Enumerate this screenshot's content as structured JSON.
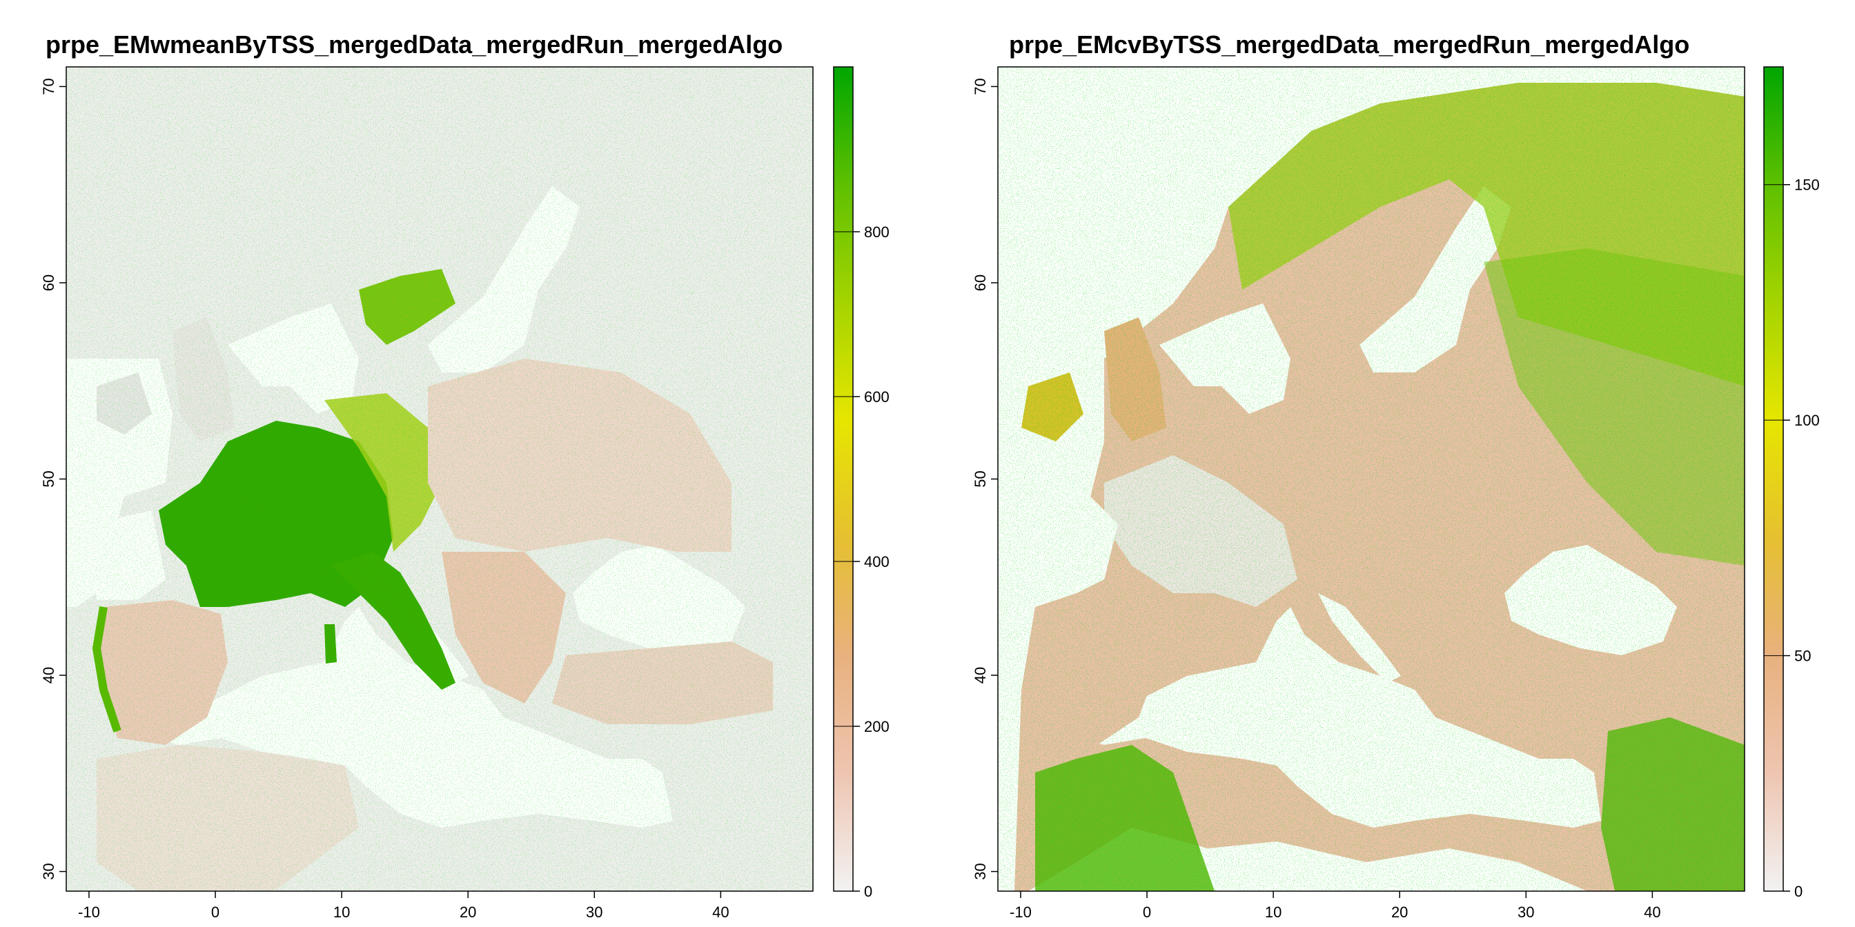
{
  "panels": [
    {
      "title": "prpe_EMwmeanByTSS_mergedData_mergedRun_mergedAlgo",
      "x_ticks": [
        "-10",
        "0",
        "10",
        "20",
        "30",
        "40"
      ],
      "y_ticks": [
        "30",
        "40",
        "50",
        "60",
        "70"
      ],
      "legend_ticks": [
        "0",
        "200",
        "400",
        "600",
        "800"
      ],
      "legend_range": [
        0,
        1000
      ]
    },
    {
      "title": "prpe_EMcvByTSS_mergedData_mergedRun_mergedAlgo",
      "x_ticks": [
        "-10",
        "0",
        "10",
        "20",
        "30",
        "40"
      ],
      "y_ticks": [
        "30",
        "40",
        "50",
        "60",
        "70"
      ],
      "legend_ticks": [
        "0",
        "50",
        "100",
        "150"
      ],
      "legend_range": [
        0,
        175
      ]
    }
  ],
  "colors": {
    "ramp": [
      "#f2f2f2",
      "#eec5b1",
      "#e8b17e",
      "#e6c030",
      "#e6e600",
      "#a5d400",
      "#5ec000",
      "#00a600"
    ],
    "sea": "#ffffff",
    "land_low": "#efe6e6",
    "land_mid": "#eec0a8",
    "land_high": "#e8b270"
  }
}
